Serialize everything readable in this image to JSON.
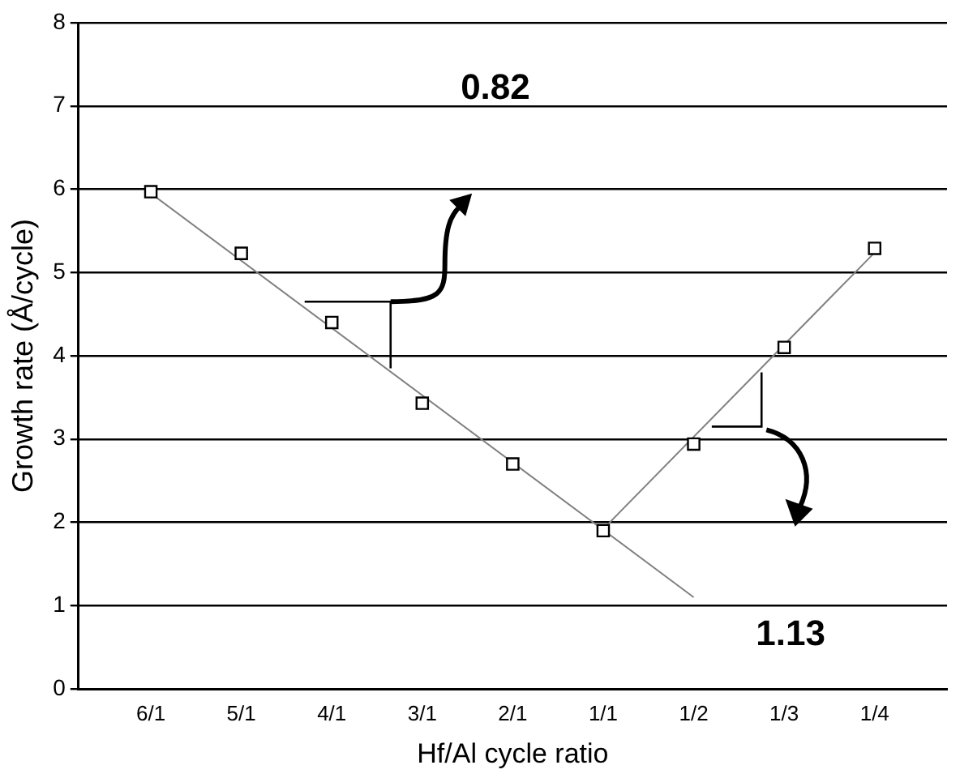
{
  "chart_data": {
    "type": "scatter",
    "xlabel": "Hf/Al cycle ratio",
    "ylabel": "Growth rate (Å/cycle)",
    "categories": [
      "6/1",
      "5/1",
      "4/1",
      "3/1",
      "2/1",
      "1/1",
      "1/2",
      "1/3",
      "1/4"
    ],
    "series": [
      {
        "type": "scatter",
        "color": "#000000",
        "marker": "square",
        "values": [
          5.97,
          5.23,
          4.4,
          3.43,
          2.7,
          1.9,
          2.94,
          4.1,
          5.29
        ]
      },
      {
        "type": "line",
        "color": "#808080",
        "marker": "none",
        "x": [
          "6/1",
          "1/2"
        ],
        "values": [
          5.95,
          1.1
        ]
      },
      {
        "type": "line",
        "color": "#808080",
        "marker": "none",
        "x": [
          "1/1",
          "1/4"
        ],
        "values": [
          1.92,
          5.24
        ]
      }
    ],
    "ylim": [
      0,
      8
    ],
    "yticks": [
      0,
      1,
      2,
      3,
      4,
      5,
      6,
      7,
      8
    ],
    "grid": "y",
    "legend": false,
    "annotations": [
      "0.82",
      "1.13"
    ]
  }
}
